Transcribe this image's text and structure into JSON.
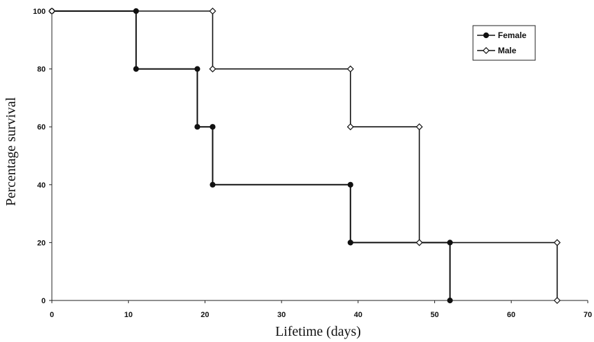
{
  "chart_data": {
    "type": "line",
    "step": "post",
    "title": "",
    "xlabel": "Lifetime (days)",
    "ylabel": "Percentage survival",
    "xlim": [
      0,
      70
    ],
    "ylim": [
      0,
      100
    ],
    "xticks": [
      "0",
      "10",
      "20",
      "30",
      "40",
      "50",
      "60",
      "70"
    ],
    "yticks": [
      "0",
      "20",
      "40",
      "60",
      "80",
      "100"
    ],
    "grid": false,
    "legend_position": "top-right",
    "series": [
      {
        "name": "Female",
        "marker": "filled-circle",
        "color": "#111111",
        "x": [
          0,
          11,
          11,
          19,
          19,
          21,
          21,
          39,
          39,
          52,
          52
        ],
        "y": [
          100,
          100,
          80,
          80,
          60,
          60,
          40,
          40,
          20,
          20,
          0
        ]
      },
      {
        "name": "Male",
        "marker": "open-diamond",
        "color": "#111111",
        "x": [
          0,
          21,
          21,
          39,
          39,
          48,
          48,
          66,
          66
        ],
        "y": [
          100,
          100,
          80,
          80,
          60,
          60,
          20,
          20,
          0
        ]
      }
    ]
  }
}
